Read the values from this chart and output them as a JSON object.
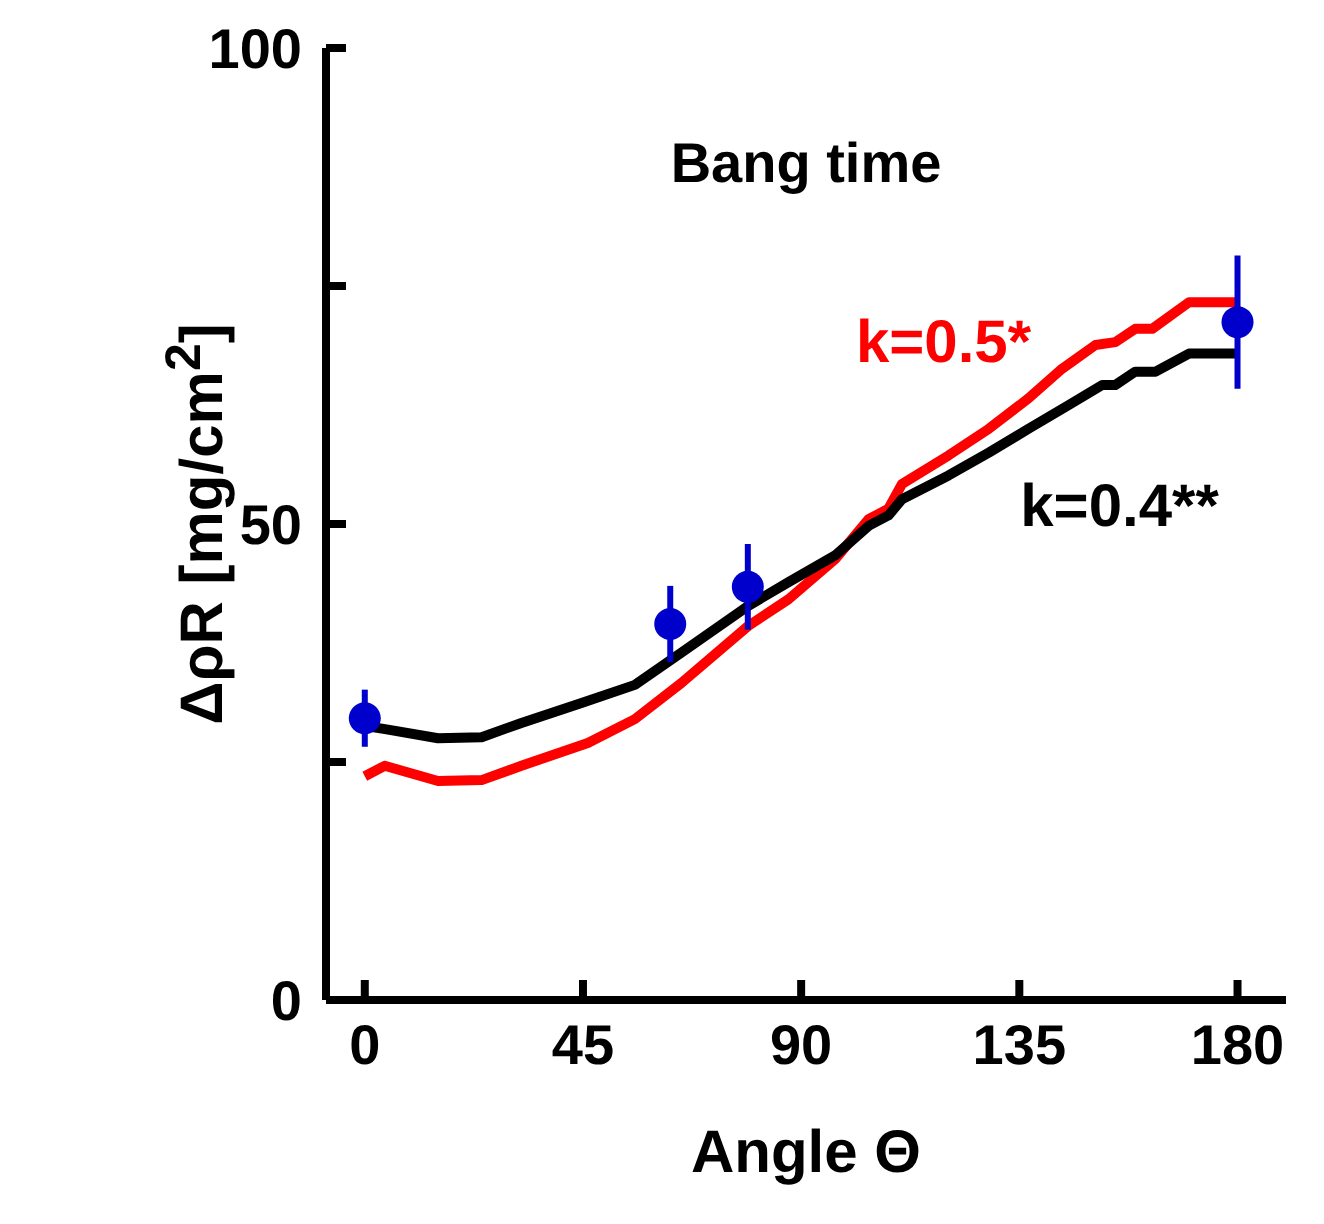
{
  "chart_data": {
    "type": "line",
    "title": "Bang time",
    "xlabel": "Angle Θ",
    "ylabel": "ΔρR [mg/cm$^{2}$]",
    "xlim": [
      -8,
      190
    ],
    "xticks": [
      0,
      45,
      90,
      135,
      180
    ],
    "ylim": [
      0,
      100
    ],
    "yticks": [
      0,
      {
        "value": 25,
        "label": null
      },
      50,
      {
        "value": 75,
        "label": null
      },
      100
    ],
    "grid": false,
    "legend": false,
    "series": [
      {
        "name": "k=0.5*",
        "color": "#ff0000",
        "x": [
          0,
          4.1,
          15.1,
          24.1,
          32.3,
          46,
          55.7,
          65.3,
          79.1,
          87.4,
          97,
          103.9,
          108,
          110.8,
          120.4,
          128.7,
          136.9,
          143.8,
          150.7,
          154.8,
          158.9,
          162.4,
          170,
          180
        ],
        "values": [
          23.5,
          24.6,
          23,
          23.1,
          24.6,
          27,
          29.5,
          33.3,
          39.3,
          42.1,
          46.3,
          50.5,
          51.6,
          54.2,
          57.2,
          60,
          63.2,
          66.3,
          68.8,
          69.1,
          70.5,
          70.5,
          73.3,
          73.3
        ]
      },
      {
        "name": "k=0.4**",
        "color": "#000000",
        "x": [
          0,
          4.8,
          15.1,
          24.1,
          32.3,
          44.7,
          55.7,
          65.3,
          79.1,
          87.4,
          97,
          103.9,
          108,
          110.8,
          120.4,
          128.7,
          136.9,
          145.2,
          152.1,
          154.8,
          158.9,
          163.1,
          170,
          180
        ],
        "values": [
          28.8,
          28.4,
          27.5,
          27.6,
          29.1,
          31.2,
          33.1,
          36.5,
          41.4,
          43.9,
          46.7,
          49.8,
          50.9,
          52.6,
          55.1,
          57.5,
          60,
          62.5,
          64.6,
          64.6,
          66,
          66,
          67.9,
          67.9
        ]
      },
      {
        "color": "#0000cc",
        "type": "scatter",
        "marker": "circle",
        "x": [
          0,
          63,
          79,
          180
        ],
        "values": [
          29.6,
          39.5,
          43.4,
          71.2
        ],
        "errors": [
          3,
          4,
          4.5,
          7
        ]
      }
    ]
  }
}
